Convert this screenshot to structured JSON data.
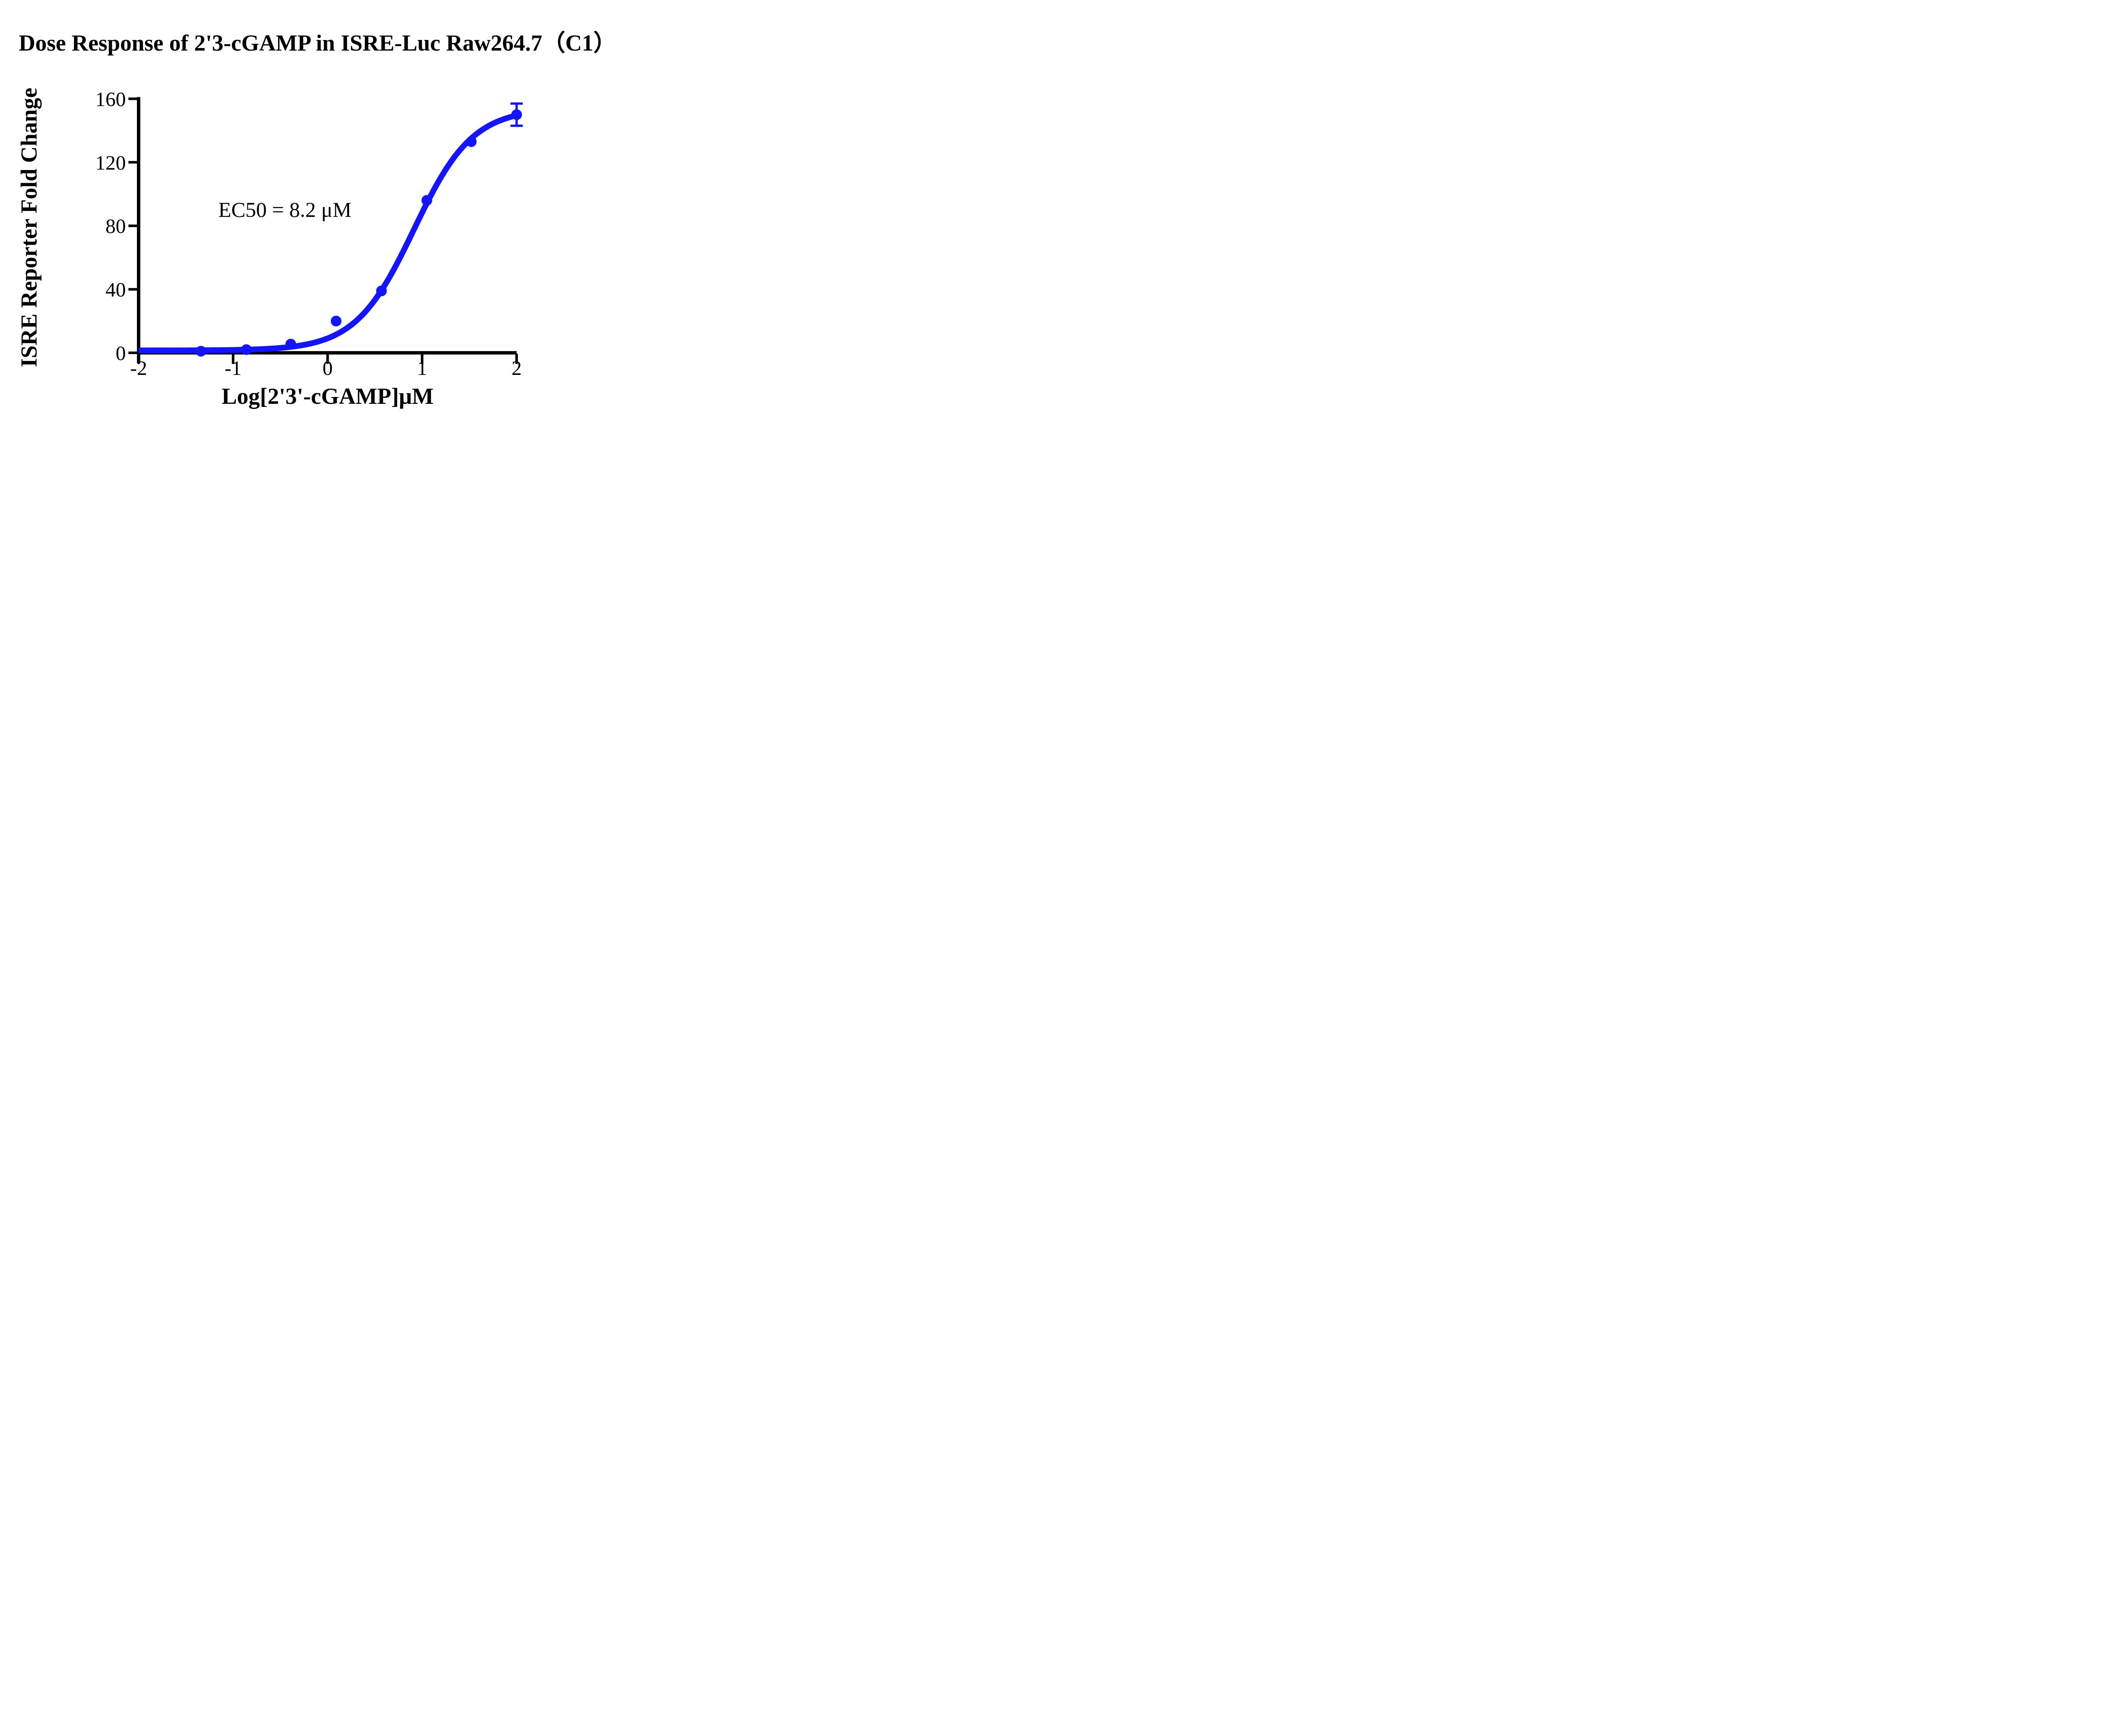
{
  "title": "Dose Response of 2'3-cGAMP in ISRE-Luc Raw264.7（C1）",
  "colors": {
    "series_blue": "#1414FF",
    "axis_black": "#000000",
    "background": "#FFFFFF"
  },
  "chart_data": {
    "type": "scatter",
    "title": "Dose Response of 2'3-cGAMP in ISRE-Luc Raw264.7（C1）",
    "xlabel": "Log[2'3'-cGAMP]μM",
    "ylabel": "ISRE Reporter Fold Change",
    "annotation": "EC50 = 8.2 μM",
    "xlim": [
      -2,
      2
    ],
    "ylim": [
      0,
      160
    ],
    "x_ticks": [
      -2,
      -1,
      0,
      1,
      2
    ],
    "y_ticks": [
      0,
      40,
      80,
      120,
      160
    ],
    "grid": false,
    "legend": "none",
    "series": [
      {
        "name": "2'3-cGAMP",
        "color": "#1414FF",
        "marker": "circle",
        "points": [
          {
            "x": -1.34,
            "y": 1
          },
          {
            "x": -0.86,
            "y": 2
          },
          {
            "x": -0.39,
            "y": 5.5
          },
          {
            "x": 0.09,
            "y": 20
          },
          {
            "x": 0.57,
            "y": 39
          },
          {
            "x": 1.05,
            "y": 96
          },
          {
            "x": 1.52,
            "y": 133
          },
          {
            "x": 2.0,
            "y": 150,
            "error": 7
          }
        ],
        "fit_curve": {
          "model": "4PL",
          "bottom": 1.5,
          "top": 154,
          "logEC50": 0.914,
          "hill": 1.4,
          "ec50_uM": 8.2
        }
      }
    ]
  }
}
